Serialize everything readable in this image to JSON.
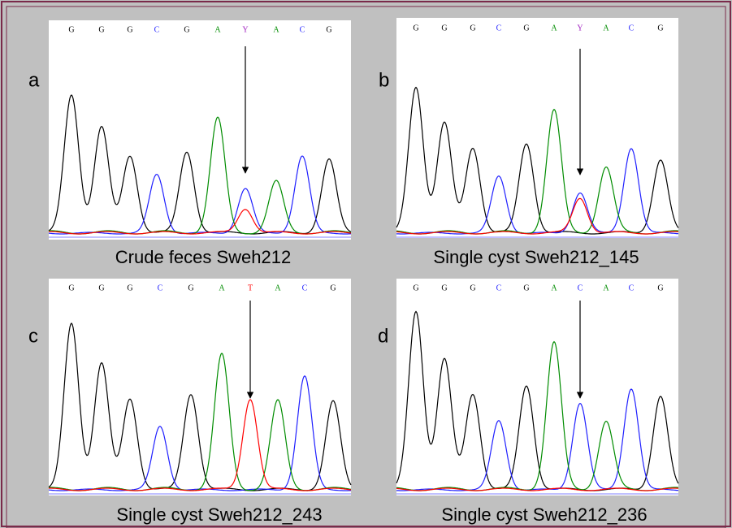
{
  "panels": [
    {
      "letter": "a",
      "bases": [
        "G",
        "G",
        "G",
        "C",
        "G",
        "A",
        "Y",
        "A",
        "C",
        "G"
      ],
      "caption": "Crude feces Sweh212"
    },
    {
      "letter": "b",
      "bases": [
        "G",
        "G",
        "G",
        "C",
        "G",
        "A",
        "Y",
        "A",
        "C",
        "G"
      ],
      "caption": "Single cyst Sweh212_145"
    },
    {
      "letter": "c",
      "bases": [
        "G",
        "G",
        "G",
        "C",
        "G",
        "A",
        "T",
        "A",
        "C",
        "G"
      ],
      "caption": "Single cyst Sweh212_243"
    },
    {
      "letter": "d",
      "bases": [
        "G",
        "G",
        "G",
        "C",
        "G",
        "A",
        "C",
        "A",
        "C",
        "G"
      ],
      "caption": "Single cyst Sweh212_236"
    }
  ]
}
